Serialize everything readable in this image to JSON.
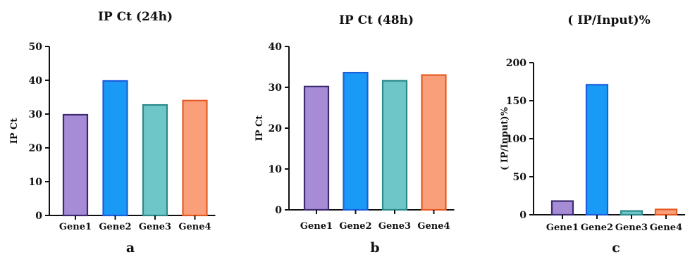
{
  "chart_data": [
    {
      "type": "bar",
      "title": "IP Ct (24h)",
      "ylabel": "IP Ct",
      "xlabel": "",
      "panel_label": "a",
      "categories": [
        "Gene1",
        "Gene2",
        "Gene3",
        "Gene4"
      ],
      "values": [
        29.8,
        39.8,
        32.7,
        34.0
      ],
      "ylim": [
        0,
        50
      ],
      "yticks": [
        0,
        10,
        20,
        30,
        40,
        50
      ],
      "grid": false,
      "colors": [
        "#a68bd6",
        "#1a9af7",
        "#6ec6c8",
        "#f9a07a"
      ],
      "edge_colors": [
        "#3c2a6e",
        "#1b5edc",
        "#2d8a8c",
        "#e65a22"
      ]
    },
    {
      "type": "bar",
      "title": "IP Ct (48h)",
      "ylabel": "IP Ct",
      "xlabel": "",
      "panel_label": "b",
      "categories": [
        "Gene1",
        "Gene2",
        "Gene3",
        "Gene4"
      ],
      "values": [
        30.2,
        33.6,
        31.6,
        33.0
      ],
      "ylim": [
        0,
        40
      ],
      "yticks": [
        0,
        10,
        20,
        30,
        40
      ],
      "grid": false,
      "colors": [
        "#a68bd6",
        "#1a9af7",
        "#6ec6c8",
        "#f9a07a"
      ],
      "edge_colors": [
        "#3c2a6e",
        "#1b5edc",
        "#2d8a8c",
        "#e65a22"
      ]
    },
    {
      "type": "bar",
      "title": "( IP/Input)%",
      "ylabel": "( IP/Input)%",
      "xlabel": "",
      "panel_label": "c",
      "categories": [
        "Gene1",
        "Gene2",
        "Gene3",
        "Gene4"
      ],
      "values": [
        18,
        171,
        5,
        7
      ],
      "ylim": [
        0,
        200
      ],
      "yticks": [
        0,
        50,
        100,
        150,
        200
      ],
      "grid": false,
      "colors": [
        "#a68bd6",
        "#1a9af7",
        "#6ec6c8",
        "#f9a07a"
      ],
      "edge_colors": [
        "#3c2a6e",
        "#1b5edc",
        "#2d8a8c",
        "#e65a22"
      ]
    }
  ]
}
